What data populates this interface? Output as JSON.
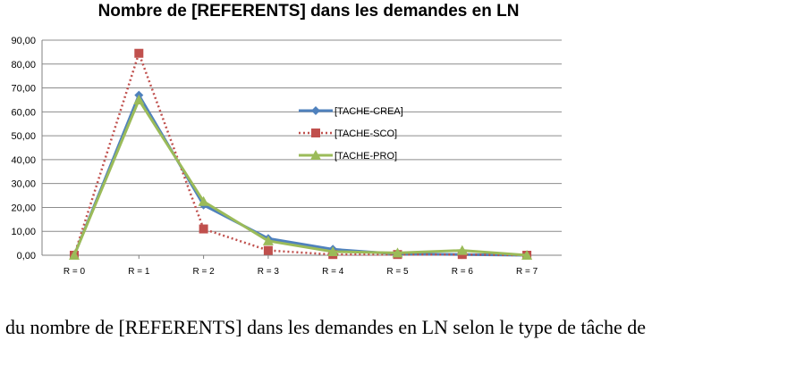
{
  "chart_data": {
    "type": "line",
    "title": "Nombre de [REFERENTS] dans les demandes en LN",
    "xlabel": "",
    "ylabel": "",
    "categories": [
      "R = 0",
      "R = 1",
      "R = 2",
      "R = 3",
      "R = 4",
      "R = 5",
      "R = 6",
      "R = 7"
    ],
    "ylim": [
      0,
      90
    ],
    "yticks": [
      "0,00",
      "10,00",
      "20,00",
      "30,00",
      "40,00",
      "50,00",
      "60,00",
      "70,00",
      "80,00",
      "90,00"
    ],
    "grid": true,
    "legend": "center-right",
    "series": [
      {
        "name": "[TACHE-CREA]",
        "values": [
          0,
          67,
          21,
          7,
          2.5,
          0.5,
          0.3,
          0
        ],
        "color": "#4F81BD",
        "marker": "diamond",
        "line": "solid"
      },
      {
        "name": "[TACHE-SCO]",
        "values": [
          0,
          84.5,
          11,
          2,
          0.3,
          0.3,
          0.3,
          0
        ],
        "color": "#C0504D",
        "marker": "square",
        "line": "dotted"
      },
      {
        "name": "[TACHE-PRO]",
        "values": [
          0,
          65,
          22.5,
          6,
          1.5,
          1,
          2,
          0
        ],
        "color": "#9BBB59",
        "marker": "triangle",
        "line": "solid"
      }
    ]
  },
  "caption": "du nombre de [REFERENTS] dans les demandes en LN selon le type de tâche de"
}
